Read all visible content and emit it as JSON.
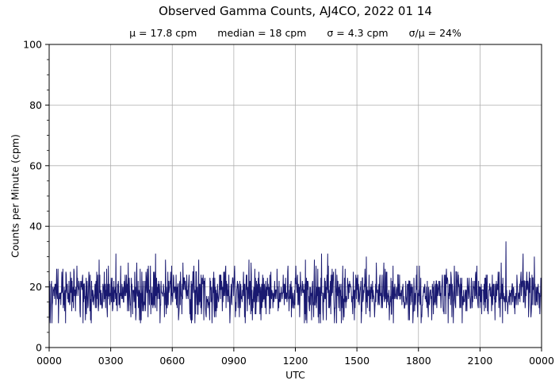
{
  "chart_data": {
    "type": "line",
    "title": "Observed Gamma Counts, AJ4CO, 2022 01 14",
    "stats_labels": [
      "μ = 17.8 cpm",
      "median = 18 cpm",
      "σ = 4.3 cpm",
      "σ/μ = 24%"
    ],
    "subtitle_stats": {
      "mean_cpm": 17.8,
      "median_cpm": 18,
      "sigma_cpm": 4.3,
      "sigma_over_mean_pct": 24
    },
    "xlabel": "UTC",
    "ylabel": "Counts per Minute (cpm)",
    "x_tick_labels": [
      "0000",
      "0300",
      "0600",
      "0900",
      "1200",
      "1500",
      "1800",
      "2100",
      "0000"
    ],
    "x_minutes_range": [
      0,
      1440
    ],
    "ylim": [
      0,
      100
    ],
    "y_major_ticks": [
      0,
      20,
      40,
      60,
      80,
      100
    ],
    "y_minor_step": 5,
    "grid": true,
    "legend": "none",
    "colors": {
      "line": "#191970",
      "grid": "#b0b0b0",
      "spine": "#000000",
      "text": "#000000",
      "background": "#ffffff"
    },
    "series": {
      "name": "observed gamma counts",
      "points_per_day": 1440,
      "unit": "integer counts per minute, 1 sample/min",
      "mean": 17.8,
      "median": 18,
      "sigma": 4.3,
      "approx_min": 8,
      "typical_max": 31,
      "approx_max": 35,
      "max_spike": {
        "utc": "2215",
        "minute_index": 1335,
        "value": 35
      },
      "prng_seed": 20220114
    }
  }
}
